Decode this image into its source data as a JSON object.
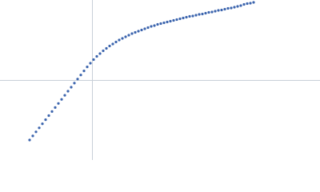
{
  "chart_data": {
    "type": "scatter",
    "color": "#3b64ad",
    "xlim": [
      0,
      400
    ],
    "ylim": [
      0,
      200
    ],
    "reference_lines": {
      "x": 115,
      "y": 100
    },
    "x": [
      37,
      41,
      45,
      49,
      53,
      57,
      61,
      65,
      69,
      73,
      77,
      81,
      85,
      89,
      93,
      97,
      101,
      105,
      109,
      113,
      117,
      121,
      125,
      129,
      133,
      137,
      141,
      145,
      149,
      153,
      157,
      161,
      165,
      169,
      173,
      177,
      181,
      185,
      189,
      193,
      197,
      201,
      205,
      209,
      213,
      217,
      221,
      225,
      229,
      233,
      237,
      241,
      245,
      249,
      253,
      257,
      261,
      265,
      269,
      273,
      277,
      281,
      285,
      289,
      293,
      297,
      301,
      305,
      309,
      313,
      317
    ],
    "values": [
      25,
      30.1,
      35.2,
      40.2,
      45.3,
      50.4,
      55.5,
      60.6,
      65.6,
      70.7,
      75.8,
      80.9,
      86,
      91,
      96.1,
      101.2,
      106.3,
      111.4,
      116.4,
      121,
      125.5,
      129.5,
      133,
      136.5,
      139.5,
      142.5,
      145,
      147.5,
      150,
      152,
      154,
      156,
      158,
      159.5,
      161,
      162.5,
      164,
      165.5,
      167,
      168,
      169.5,
      170.5,
      171.5,
      172.5,
      173.5,
      174.5,
      175.5,
      176.5,
      177.5,
      178.5,
      179.5,
      180,
      181,
      182,
      182.5,
      183.5,
      184.5,
      185,
      186,
      187,
      187.5,
      188.5,
      189.5,
      190,
      191,
      192,
      193,
      194.5,
      195.5,
      196,
      197
    ]
  }
}
